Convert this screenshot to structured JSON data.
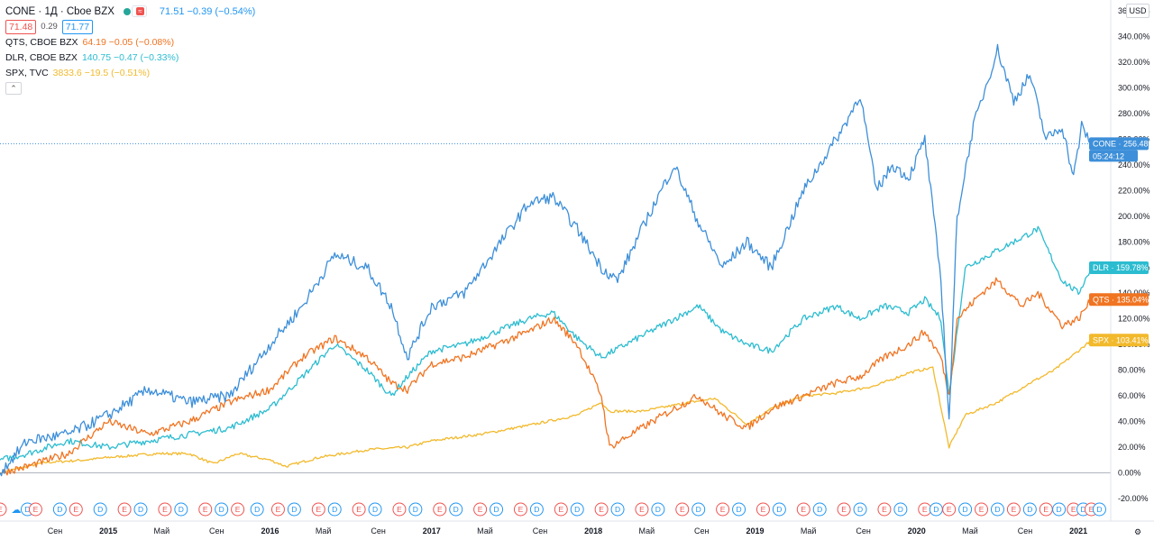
{
  "legend": {
    "main_symbol": "CONE · 1Д · Cboe BZX",
    "main_values": "71.51 −0.39 (−0.54%)",
    "bid": "71.48",
    "spread": "0.29",
    "ask": "71.77",
    "compare": [
      {
        "name": "QTS, CBOE BZX",
        "values": "64.19 −0.05 (−0.08%)",
        "color": "#f07422"
      },
      {
        "name": "DLR, CBOE BZX",
        "values": "140.75 −0.47 (−0.33%)",
        "color": "#2cbcd0"
      },
      {
        "name": "SPX, TVC",
        "values": "3833.6 −19.5 (−0.51%)",
        "color": "#f2b92c"
      }
    ],
    "collapse_icon": "chevron-up-icon"
  },
  "currency": "USD",
  "countdown": "05:24:12",
  "colors": {
    "cone": "#3d8fd9",
    "qts": "#f07422",
    "dlr": "#2cbcd0",
    "spx": "#f2b92c",
    "earnings": "#ef5350",
    "dividend": "#2196f3"
  },
  "chart_data": {
    "type": "line",
    "yscale": "percent",
    "ylim": [
      -20,
      360
    ],
    "yticks": [
      "360.00%",
      "340.00%",
      "320.00%",
      "300.00%",
      "280.00%",
      "260.00%",
      "240.00%",
      "220.00%",
      "200.00%",
      "180.00%",
      "160.00%",
      "140.00%",
      "120.00%",
      "100.00%",
      "80.00%",
      "60.00%",
      "40.00%",
      "20.00%",
      "0.00%",
      "-20.00%"
    ],
    "xlim": [
      2014.33,
      2021.2
    ],
    "xticks": [
      {
        "label": "Сен",
        "x": 2014.67
      },
      {
        "label": "2015",
        "x": 2015.0,
        "year": true
      },
      {
        "label": "Май",
        "x": 2015.33
      },
      {
        "label": "Сен",
        "x": 2015.67
      },
      {
        "label": "2016",
        "x": 2016.0,
        "year": true
      },
      {
        "label": "Май",
        "x": 2016.33
      },
      {
        "label": "Сен",
        "x": 2016.67
      },
      {
        "label": "2017",
        "x": 2017.0,
        "year": true
      },
      {
        "label": "Май",
        "x": 2017.33
      },
      {
        "label": "Сен",
        "x": 2017.67
      },
      {
        "label": "2018",
        "x": 2018.0,
        "year": true
      },
      {
        "label": "Май",
        "x": 2018.33
      },
      {
        "label": "Сен",
        "x": 2018.67
      },
      {
        "label": "2019",
        "x": 2019.0,
        "year": true
      },
      {
        "label": "Май",
        "x": 2019.33
      },
      {
        "label": "Сен",
        "x": 2019.67
      },
      {
        "label": "2020",
        "x": 2020.0,
        "year": true
      },
      {
        "label": "Май",
        "x": 2020.33
      },
      {
        "label": "Сен",
        "x": 2020.67
      },
      {
        "label": "2021",
        "x": 2021.0,
        "year": true
      }
    ],
    "series": [
      {
        "name": "CONE",
        "tag": "CONE · 256.48%",
        "last": 256.48,
        "color": "#3d8fd9",
        "x": [
          2014.33,
          2014.5,
          2014.75,
          2015.0,
          2015.25,
          2015.5,
          2015.75,
          2016.0,
          2016.2,
          2016.4,
          2016.6,
          2016.75,
          2016.85,
          2017.0,
          2017.2,
          2017.4,
          2017.6,
          2017.75,
          2017.9,
          2018.05,
          2018.15,
          2018.3,
          2018.5,
          2018.65,
          2018.8,
          2018.95,
          2019.1,
          2019.3,
          2019.45,
          2019.55,
          2019.65,
          2019.75,
          2019.85,
          2019.95,
          2020.05,
          2020.15,
          2020.2,
          2020.25,
          2020.35,
          2020.5,
          2020.6,
          2020.7,
          2020.8,
          2020.9,
          2020.97,
          2021.02,
          2021.08
        ],
        "y": [
          0,
          25,
          30,
          45,
          65,
          55,
          60,
          100,
          130,
          170,
          160,
          130,
          90,
          130,
          140,
          175,
          210,
          215,
          190,
          160,
          150,
          190,
          240,
          195,
          160,
          180,
          160,
          220,
          250,
          270,
          295,
          220,
          240,
          230,
          260,
          150,
          40,
          200,
          270,
          330,
          290,
          310,
          260,
          270,
          230,
          270,
          256.48
        ]
      },
      {
        "name": "QTS",
        "tag": "QTS · 135.04%",
        "last": 135.04,
        "color": "#f07422",
        "x": [
          2014.33,
          2014.5,
          2014.75,
          2015.0,
          2015.25,
          2015.5,
          2015.75,
          2016.0,
          2016.2,
          2016.4,
          2016.6,
          2016.75,
          2016.85,
          2017.0,
          2017.2,
          2017.4,
          2017.6,
          2017.75,
          2017.9,
          2018.05,
          2018.1,
          2018.3,
          2018.5,
          2018.65,
          2018.8,
          2018.95,
          2019.1,
          2019.3,
          2019.5,
          2019.65,
          2019.8,
          2019.95,
          2020.05,
          2020.15,
          2020.2,
          2020.25,
          2020.4,
          2020.5,
          2020.65,
          2020.75,
          2020.9,
          2021.0,
          2021.08
        ],
        "y": [
          0,
          5,
          15,
          40,
          30,
          40,
          55,
          65,
          90,
          105,
          90,
          70,
          65,
          85,
          90,
          100,
          110,
          120,
          100,
          60,
          20,
          35,
          50,
          60,
          45,
          35,
          50,
          60,
          70,
          75,
          90,
          100,
          110,
          90,
          60,
          120,
          140,
          150,
          130,
          140,
          115,
          120,
          135.04
        ]
      },
      {
        "name": "DLR",
        "tag": "DLR · 159.78%",
        "last": 159.78,
        "color": "#2cbcd0",
        "x": [
          2014.33,
          2014.5,
          2014.75,
          2015.0,
          2015.25,
          2015.5,
          2015.75,
          2016.0,
          2016.2,
          2016.4,
          2016.6,
          2016.75,
          2016.85,
          2017.0,
          2017.2,
          2017.4,
          2017.6,
          2017.75,
          2017.9,
          2018.05,
          2018.2,
          2018.35,
          2018.5,
          2018.65,
          2018.8,
          2018.95,
          2019.1,
          2019.3,
          2019.5,
          2019.65,
          2019.8,
          2019.95,
          2020.05,
          2020.15,
          2020.2,
          2020.3,
          2020.45,
          2020.6,
          2020.75,
          2020.9,
          2021.0,
          2021.08
        ],
        "y": [
          10,
          15,
          25,
          20,
          25,
          30,
          35,
          50,
          75,
          100,
          80,
          60,
          75,
          95,
          100,
          110,
          120,
          125,
          105,
          90,
          100,
          110,
          120,
          130,
          110,
          100,
          95,
          120,
          130,
          120,
          130,
          125,
          135,
          120,
          60,
          160,
          170,
          180,
          190,
          150,
          140,
          159.78
        ]
      },
      {
        "name": "SPX",
        "tag": "SPX · 103.41%",
        "last": 103.41,
        "color": "#f2b92c",
        "x": [
          2014.33,
          2014.6,
          2014.85,
          2015.0,
          2015.3,
          2015.5,
          2015.65,
          2015.8,
          2016.0,
          2016.1,
          2016.3,
          2016.6,
          2016.85,
          2017.0,
          2017.3,
          2017.6,
          2017.9,
          2018.05,
          2018.1,
          2018.3,
          2018.6,
          2018.75,
          2018.95,
          2019.1,
          2019.3,
          2019.5,
          2019.75,
          2019.95,
          2020.1,
          2020.2,
          2020.3,
          2020.5,
          2020.7,
          2020.85,
          2021.0,
          2021.08
        ],
        "y": [
          0,
          8,
          10,
          12,
          15,
          15,
          7,
          15,
          10,
          5,
          12,
          18,
          20,
          25,
          30,
          37,
          45,
          55,
          48,
          48,
          55,
          58,
          38,
          50,
          60,
          62,
          68,
          78,
          82,
          20,
          45,
          55,
          70,
          80,
          95,
          103.41
        ]
      }
    ]
  },
  "events": {
    "letters": [
      "E",
      "D",
      "E",
      "D",
      "E",
      "D",
      "E",
      "D",
      "E",
      "D",
      "E",
      "D",
      "E",
      "D",
      "E",
      "D",
      "E",
      "D",
      "E",
      "D",
      "E",
      "D",
      "E",
      "D",
      "E",
      "D",
      "E",
      "D",
      "E",
      "D",
      "E",
      "D",
      "E",
      "D",
      "E",
      "D",
      "E",
      "D",
      "E",
      "D",
      "E",
      "D",
      "E",
      "D",
      "E",
      "D",
      "E",
      "D",
      "E",
      "D",
      "E",
      "D",
      "E",
      "D",
      "E",
      "D",
      "E",
      "D",
      "E",
      "D"
    ],
    "x": [
      2014.33,
      2014.5,
      2014.55,
      2014.7,
      2014.8,
      2014.95,
      2015.1,
      2015.2,
      2015.35,
      2015.45,
      2015.6,
      2015.7,
      2015.8,
      2015.92,
      2016.05,
      2016.15,
      2016.3,
      2016.4,
      2016.55,
      2016.65,
      2016.8,
      2016.9,
      2017.05,
      2017.15,
      2017.3,
      2017.4,
      2017.55,
      2017.65,
      2017.8,
      2017.9,
      2018.05,
      2018.15,
      2018.3,
      2018.4,
      2018.55,
      2018.65,
      2018.8,
      2018.9,
      2019.05,
      2019.15,
      2019.3,
      2019.4,
      2019.55,
      2019.65,
      2019.8,
      2019.9,
      2020.05,
      2020.12,
      2020.2,
      2020.3,
      2020.4,
      2020.5,
      2020.6,
      2020.7,
      2020.8,
      2020.88,
      2020.97,
      2021.03,
      2021.08,
      2021.13
    ]
  }
}
